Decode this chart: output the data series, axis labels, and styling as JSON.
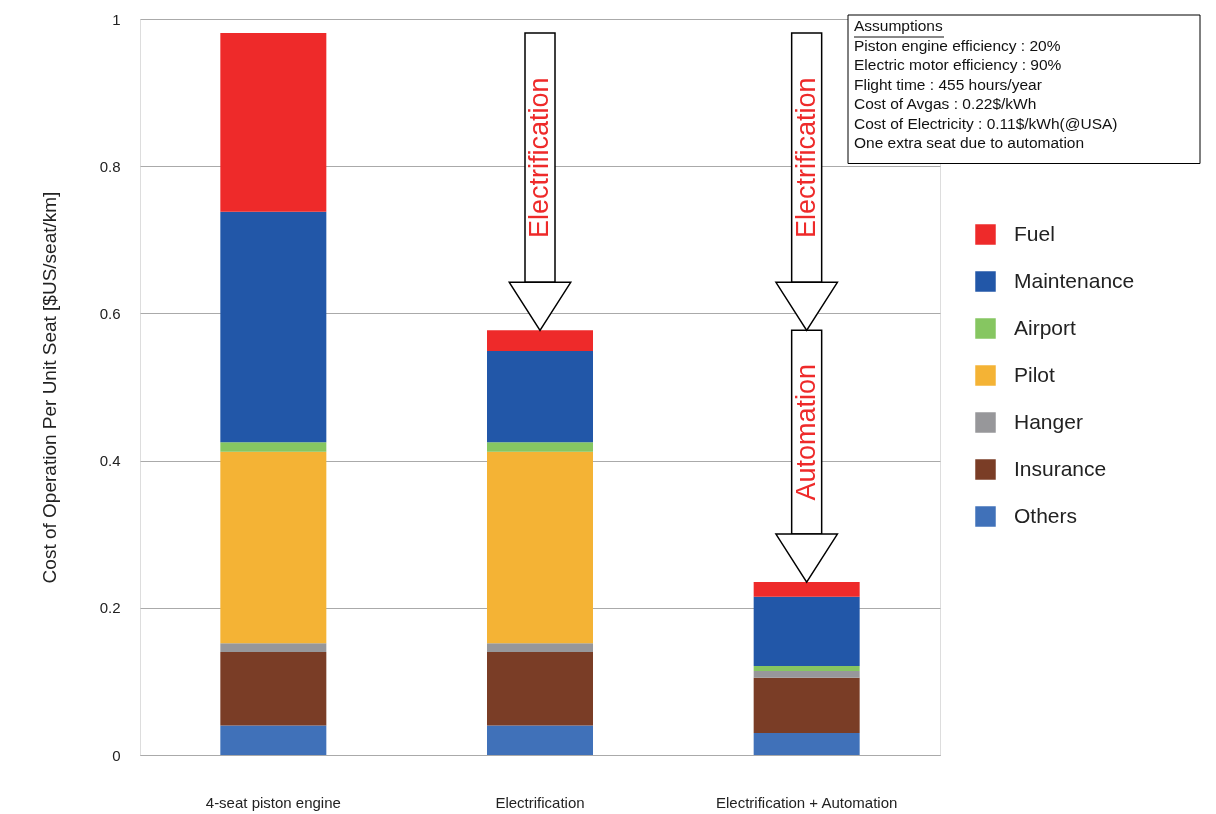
{
  "chart_data": {
    "type": "bar",
    "stacked": true,
    "categories": [
      "4-seat piston engine",
      "Electrification",
      "Electrification + Automation"
    ],
    "ylabel": "Cost of Operation Per Unit Seat   [$US/seat/km]",
    "ylim": [
      0,
      1
    ],
    "yticks": [
      0,
      0.2,
      0.4,
      0.6,
      0.8,
      1
    ],
    "grid": "y",
    "legend": "right",
    "series": [
      {
        "name": "Others",
        "color": "#4071b9",
        "values": [
          0.04,
          0.04,
          0.03
        ]
      },
      {
        "name": "Insurance",
        "color": "#7a3d26",
        "values": [
          0.1,
          0.1,
          0.075
        ]
      },
      {
        "name": "Hanger",
        "color": "#97979a",
        "values": [
          0.012,
          0.012,
          0.009
        ]
      },
      {
        "name": "Pilot",
        "color": "#f4b335",
        "values": [
          0.26,
          0.26,
          0
        ]
      },
      {
        "name": "Airport",
        "color": "#86c661",
        "values": [
          0.013,
          0.013,
          0.007
        ]
      },
      {
        "name": "Maintenance",
        "color": "#2257a8",
        "values": [
          0.313,
          0.124,
          0.094
        ]
      },
      {
        "name": "Fuel",
        "color": "#ee2a2a",
        "values": [
          0.243,
          0.028,
          0.02
        ]
      }
    ],
    "annotations": [
      "Assumptions",
      "Piston engine efficiency : 20%",
      "Electric motor efficiency : 90%",
      "Flight time : 455 hours/year",
      "Cost of Avgas : 0.22$/kWh",
      "Cost of Electricity : 0.11$/kWh(@USA)",
      "One extra seat due to automation",
      "Electrification",
      "Electrification",
      "Automation"
    ]
  }
}
